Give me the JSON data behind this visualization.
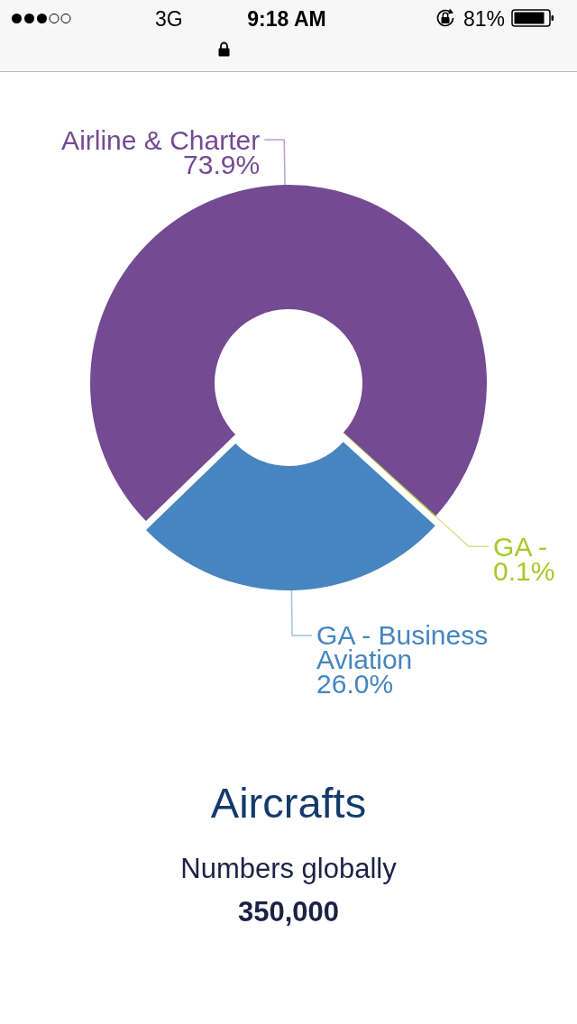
{
  "chart_data": {
    "type": "donut",
    "title": "Aircrafts",
    "subtitle": "Numbers globally",
    "annotations": [
      "3G",
      "9:18 AM",
      "81%",
      "350,000"
    ],
    "categories": [
      "Airline & Charter",
      "GA - Business Aviation",
      "GA -"
    ],
    "values": [
      73.9,
      26.0,
      0.1
    ],
    "colors": [
      "#744a92",
      "#4685bf",
      "#a8c927"
    ],
    "value_labels": [
      "73.9%",
      "26.0%",
      "0.1%"
    ]
  }
}
